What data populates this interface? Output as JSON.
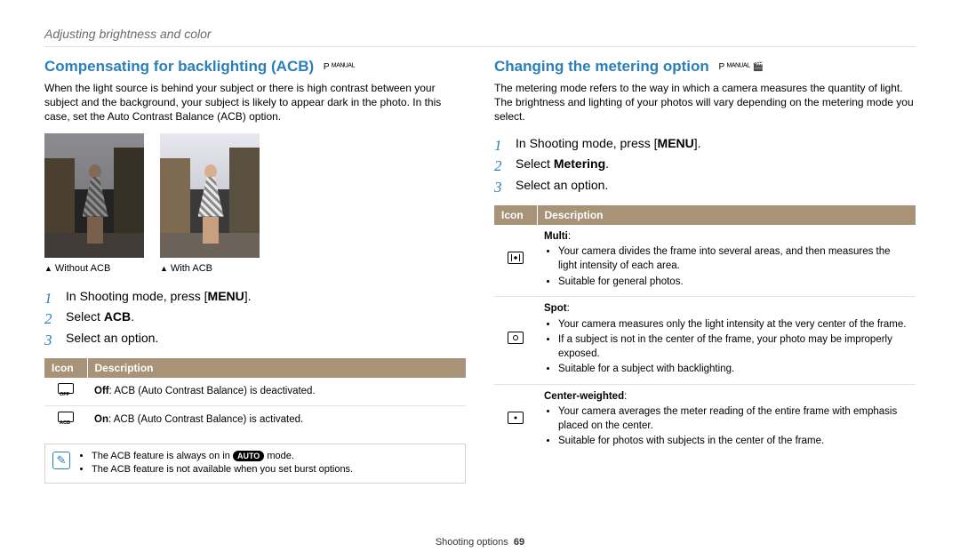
{
  "header": "Adjusting brightness and color",
  "left": {
    "title": "Compensating for backlighting (ACB)",
    "modes": "P  ᴹᴬᴺᵁᴬᴸ",
    "intro": "When the light source is behind your subject or there is high contrast between your subject and the background, your subject is likely to appear dark in the photo. In this case, set the Auto Contrast Balance (ACB) option.",
    "caption1": "Without ACB",
    "caption2": "With ACB",
    "step1_a": "In Shooting mode, press [",
    "step1_menu": "MENU",
    "step1_b": "].",
    "step2_a": "Select ",
    "step2_b": "ACB",
    "step2_c": ".",
    "step3": "Select an option.",
    "th_icon": "Icon",
    "th_desc": "Description",
    "row1_b": "Off",
    "row1_t": ": ACB (Auto Contrast Balance) is deactivated.",
    "row2_b": "On",
    "row2_t": ": ACB (Auto Contrast Balance) is activated.",
    "note1_a": "The ACB feature is always on in ",
    "note1_pill": "AUTO",
    "note1_b": " mode.",
    "note2": "The ACB feature is not available when you set burst options."
  },
  "right": {
    "title": "Changing the metering option",
    "modes": "P  ᴹᴬᴺᵁᴬᴸ  🎬",
    "intro": "The metering mode refers to the way in which a camera measures the quantity of light. The brightness and lighting of your photos will vary depending on the metering mode you select.",
    "step1_a": "In Shooting mode, press [",
    "step1_menu": "MENU",
    "step1_b": "].",
    "step2_a": "Select ",
    "step2_b": "Metering",
    "step2_c": ".",
    "step3": "Select an option.",
    "th_icon": "Icon",
    "th_desc": "Description",
    "multi_h": "Multi",
    "multi_b1": "Your camera divides the frame into several areas, and then measures the light intensity of each area.",
    "multi_b2": "Suitable for general photos.",
    "spot_h": "Spot",
    "spot_b1": "Your camera measures only the light intensity at the very center of the frame.",
    "spot_b2": "If a subject is not in the center of the frame, your photo may be improperly exposed.",
    "spot_b3": "Suitable for a subject with backlighting.",
    "center_h": "Center-weighted",
    "center_b1": "Your camera averages the meter reading of the entire frame with emphasis placed on the center.",
    "center_b2": "Suitable for photos with subjects in the center of the frame."
  },
  "footer": {
    "label": "Shooting options",
    "page": "69"
  },
  "colors": {
    "accent": "#2a7fb8",
    "table_header": "#a89378"
  }
}
